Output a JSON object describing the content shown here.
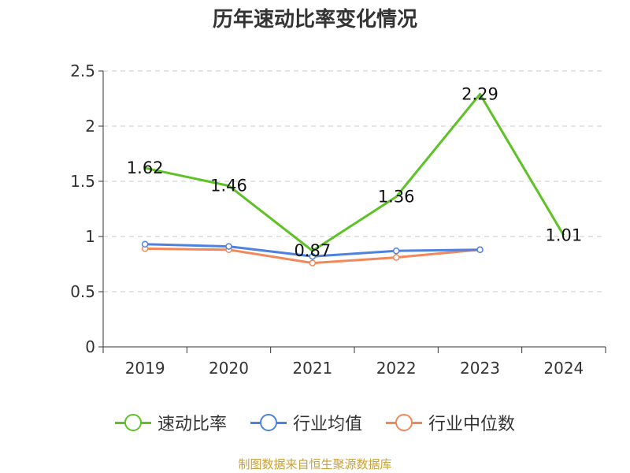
{
  "colors": {
    "速动比率": "#5cc225",
    "行业均值": "#4f81e0",
    "行业中位数": "#f2875a",
    "grid": "#c8c8c8",
    "source": "#c9a13b"
  },
  "chart_data": {
    "type": "line",
    "title": "历年速动比率变化情况",
    "categories": [
      "2019",
      "2020",
      "2021",
      "2022",
      "2023",
      "2024"
    ],
    "series": [
      {
        "name": "速动比率",
        "values": [
          1.62,
          1.46,
          0.87,
          1.36,
          2.29,
          1.01
        ],
        "labels": [
          "1.62",
          "1.46",
          "0.87",
          "1.36",
          "2.29",
          "1.01"
        ]
      },
      {
        "name": "行业均值",
        "values": [
          0.93,
          0.91,
          0.82,
          0.87,
          0.88,
          null
        ]
      },
      {
        "name": "行业中位数",
        "values": [
          0.89,
          0.88,
          0.76,
          0.81,
          0.88,
          null
        ]
      }
    ],
    "ylim": [
      0,
      2.5
    ],
    "yticks": [
      "0",
      "0.5",
      "1",
      "1.5",
      "2",
      "2.5"
    ],
    "grid": true,
    "legend_position": "bottom"
  },
  "footer": {
    "source": "制图数据来自恒生聚源数据库"
  }
}
